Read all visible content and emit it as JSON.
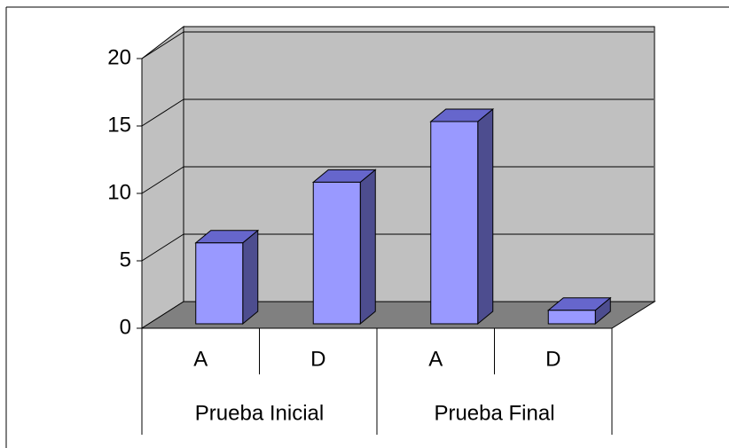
{
  "chart_data": {
    "type": "bar3d",
    "categories": [
      "A",
      "D",
      "A",
      "D"
    ],
    "groups": [
      "Prueba Inicial",
      "Prueba Final"
    ],
    "values": [
      6,
      10.5,
      15,
      1
    ],
    "color": "#9999ff",
    "ylim": [
      0,
      20
    ],
    "yticks": [
      0,
      5,
      10,
      15,
      20
    ],
    "grid": true
  }
}
